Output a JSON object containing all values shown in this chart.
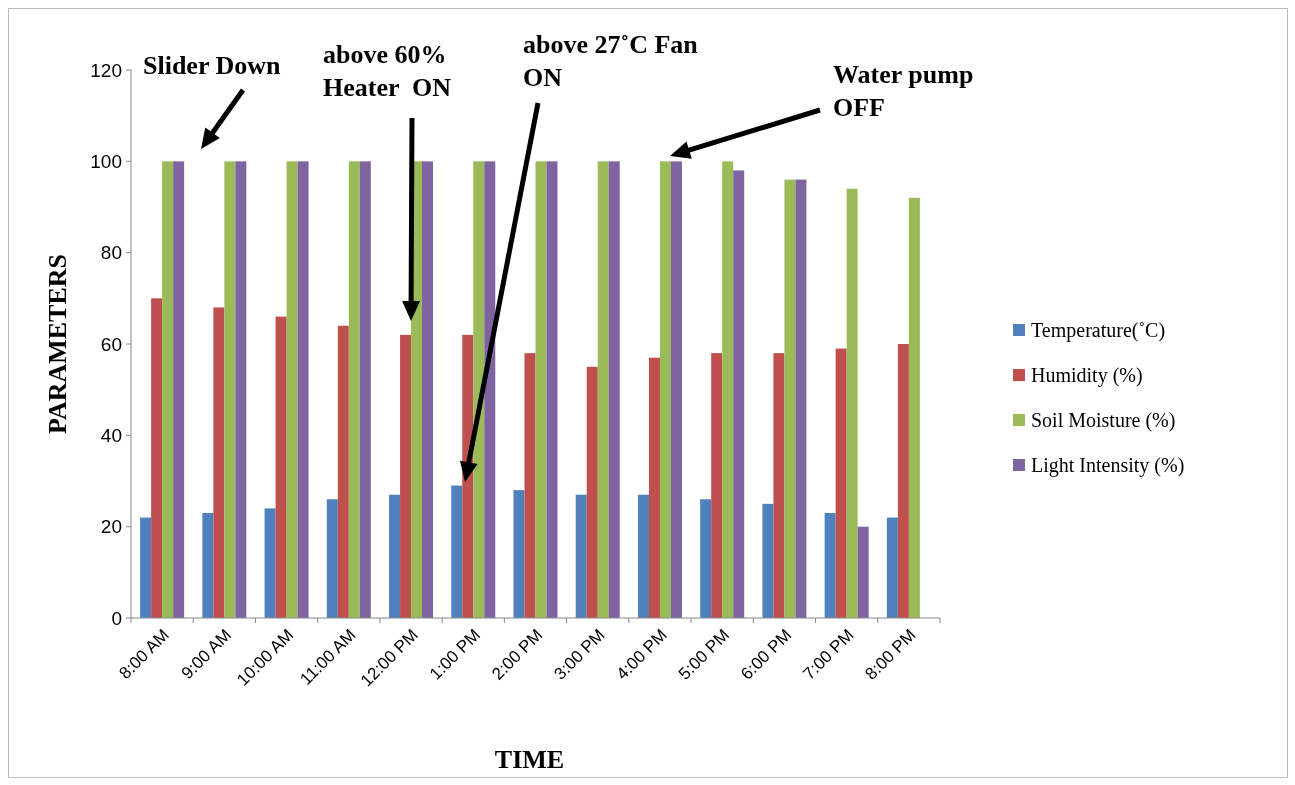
{
  "chart_data": {
    "type": "bar",
    "xlabel": "TIME",
    "ylabel": "PARAMETERS",
    "categories": [
      "8:00 AM",
      "9:00 AM",
      "10:00 AM",
      "11:00 AM",
      "12:00 PM",
      "1:00 PM",
      "2:00 PM",
      "3:00 PM",
      "4:00 PM",
      "5:00 PM",
      "6:00 PM",
      "7:00 PM",
      "8:00 PM"
    ],
    "series": [
      {
        "name": "Temperature(˚C)",
        "color": "#4f81bd",
        "values": [
          22,
          23,
          24,
          26,
          27,
          29,
          28,
          27,
          27,
          26,
          25,
          23,
          22
        ]
      },
      {
        "name": "Humidity (%)",
        "color": "#c0504d",
        "values": [
          70,
          68,
          66,
          64,
          62,
          62,
          58,
          55,
          57,
          58,
          58,
          59,
          60
        ]
      },
      {
        "name": "Soil Moisture (%)",
        "color": "#9bbb59",
        "values": [
          100,
          100,
          100,
          100,
          100,
          100,
          100,
          100,
          100,
          100,
          96,
          94,
          92
        ]
      },
      {
        "name": "Light Intensity (%)",
        "color": "#8064a2",
        "values": [
          100,
          100,
          100,
          100,
          100,
          100,
          100,
          100,
          100,
          98,
          96,
          20,
          null
        ]
      }
    ],
    "ylim": [
      0,
      120
    ],
    "yticks": [
      0,
      20,
      40,
      60,
      80,
      100,
      120
    ],
    "grid": false,
    "legend": "right",
    "annotations": [
      "Slider Down",
      "above 60%\nHeater  ON",
      "above 27˚C Fan\nON",
      "Water pump\nOFF"
    ]
  }
}
